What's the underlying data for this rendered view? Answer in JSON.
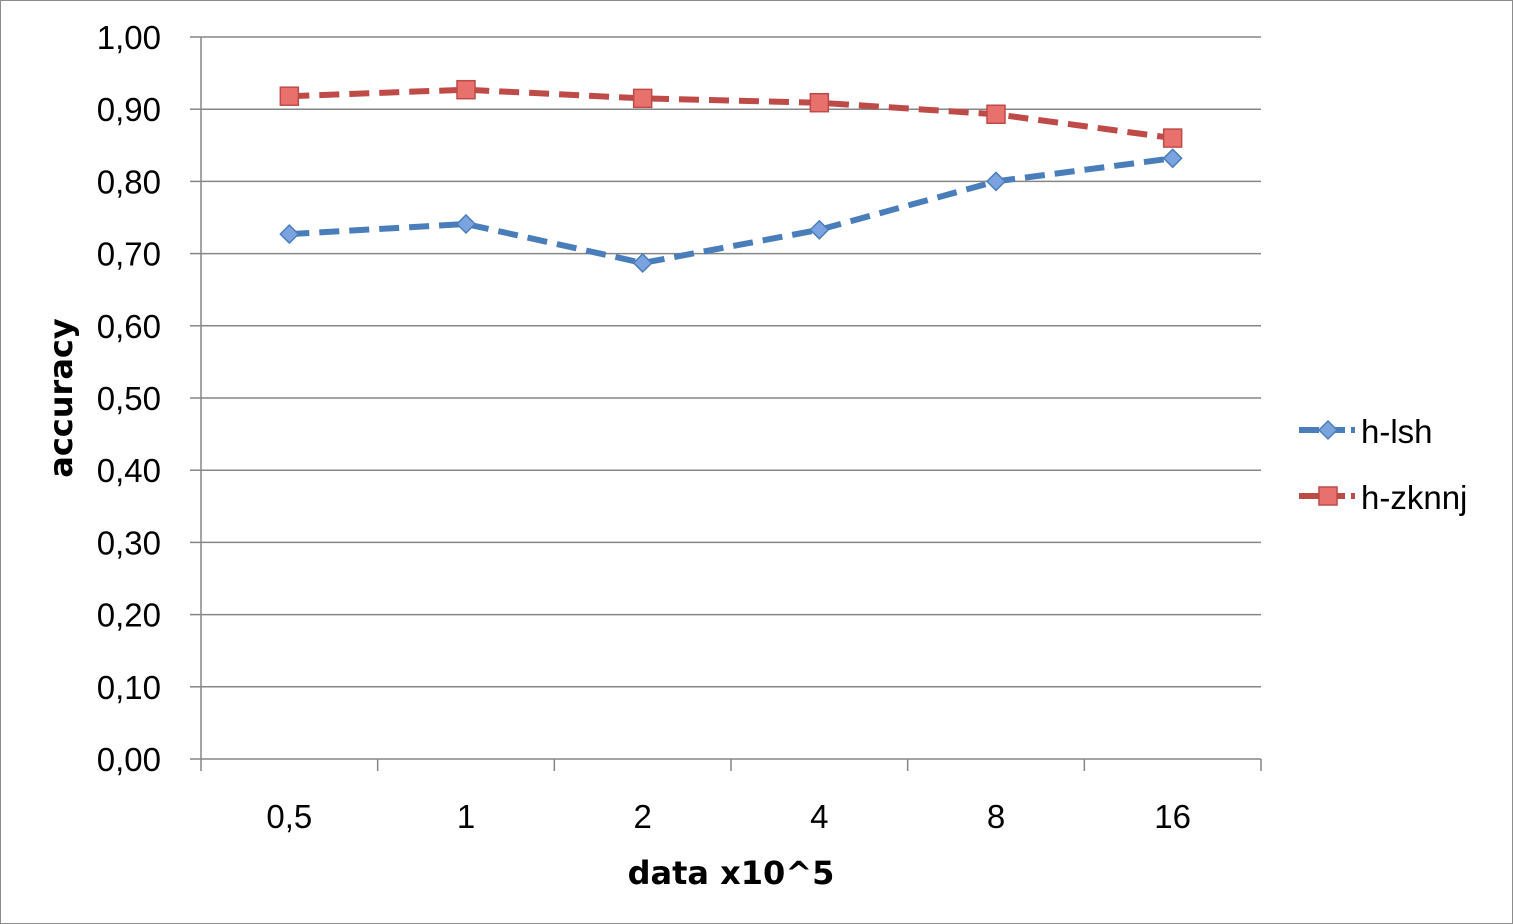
{
  "chart_data": {
    "type": "line",
    "title": "",
    "xlabel": "data x10^5",
    "ylabel": "accuracy",
    "categories": [
      "0,5",
      "1",
      "2",
      "4",
      "8",
      "16"
    ],
    "yticks": [
      "0,00",
      "0,10",
      "0,20",
      "0,30",
      "0,40",
      "0,50",
      "0,60",
      "0,70",
      "0,80",
      "0,90",
      "1,00"
    ],
    "ylim": [
      0,
      1
    ],
    "grid": true,
    "legend_position": "right",
    "series": [
      {
        "name": "h-lsh",
        "values": [
          0.727,
          0.741,
          0.687,
          0.733,
          0.8,
          0.832
        ],
        "color": "#4a7ebb",
        "marker": "diamond",
        "line_style": "dashed"
      },
      {
        "name": "h-zknnj",
        "values": [
          0.918,
          0.927,
          0.915,
          0.909,
          0.893,
          0.86
        ],
        "color": "#be4b48",
        "marker": "square",
        "line_style": "dashed"
      }
    ]
  }
}
